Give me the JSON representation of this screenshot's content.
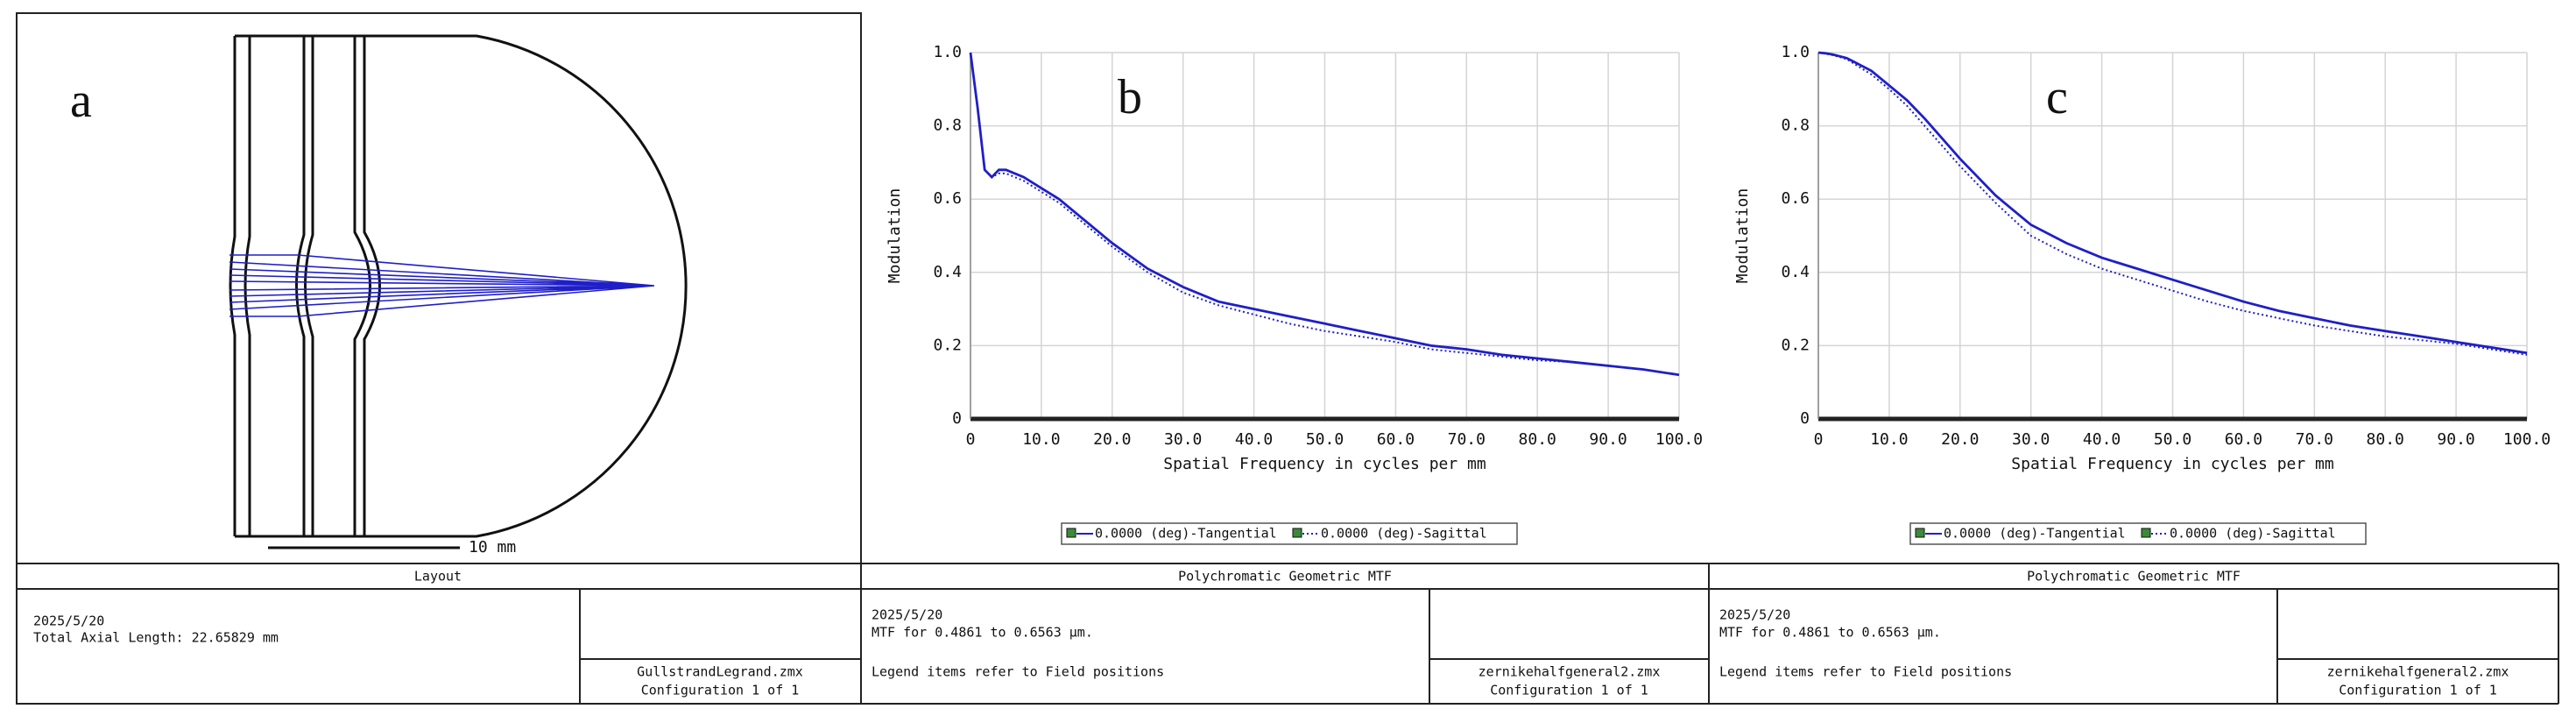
{
  "layout": {
    "label": "a",
    "scale_label": "10 mm",
    "footer": {
      "title": "Layout",
      "date": "2025/5/20",
      "line2": "Total Axial Length:   22.65829 mm",
      "file": "GullstrandLegrand.zmx",
      "config": "Configuration 1 of 1"
    }
  },
  "chart_data": [
    {
      "type": "line",
      "panel_label": "b",
      "x_label": "Spatial Frequency in cycles per mm",
      "y_label": "Modulation",
      "xlim": [
        0,
        100
      ],
      "ylim": [
        0,
        1
      ],
      "xticks": [
        0,
        {
          "value": 10,
          "label": "10.0"
        },
        {
          "value": 20,
          "label": "20.0"
        },
        {
          "value": 30,
          "label": "30.0"
        },
        {
          "value": 40,
          "label": "40.0"
        },
        {
          "value": 50,
          "label": "50.0"
        },
        {
          "value": 60,
          "label": "60.0"
        },
        {
          "value": 70,
          "label": "70.0"
        },
        {
          "value": 80,
          "label": "80.0"
        },
        {
          "value": 90,
          "label": "90.0"
        },
        {
          "value": 100,
          "label": "100.0"
        }
      ],
      "yticks": [
        0,
        0.2,
        0.4,
        0.6,
        0.8,
        {
          "value": 1,
          "label": "1.0"
        }
      ],
      "grid": true,
      "x": [
        0,
        1,
        2,
        3,
        4,
        5,
        7.5,
        10,
        12.5,
        15,
        20,
        25,
        30,
        35,
        40,
        45,
        50,
        55,
        60,
        65,
        70,
        75,
        80,
        85,
        90,
        95,
        100
      ],
      "series": [
        {
          "name": "0.0000 (deg)-Tangential",
          "color": "#1f1fc8",
          "dash": "solid",
          "values": [
            1.0,
            0.85,
            0.68,
            0.66,
            0.68,
            0.68,
            0.66,
            0.63,
            0.6,
            0.56,
            0.48,
            0.41,
            0.36,
            0.32,
            0.3,
            0.28,
            0.26,
            0.24,
            0.22,
            0.2,
            0.19,
            0.175,
            0.165,
            0.155,
            0.145,
            0.135,
            0.12
          ]
        },
        {
          "name": "0.0000 (deg)-Sagittal",
          "color": "#1f1fc8",
          "dash": "dotted",
          "values": [
            1.0,
            0.85,
            0.68,
            0.66,
            0.67,
            0.67,
            0.65,
            0.62,
            0.59,
            0.55,
            0.47,
            0.4,
            0.345,
            0.31,
            0.285,
            0.26,
            0.24,
            0.225,
            0.21,
            0.19,
            0.18,
            0.17,
            0.16,
            0.155,
            0.145,
            0.135,
            0.12
          ]
        }
      ],
      "footer": {
        "title": "Polychromatic Geometric MTF",
        "date": "2025/5/20",
        "line2": "MTF for 0.4861 to 0.6563 µm.",
        "line3": "Legend items refer to Field positions",
        "file": "zernikehalfgeneral2.zmx",
        "config": "Configuration 1 of 1"
      }
    },
    {
      "type": "line",
      "panel_label": "c",
      "x_label": "Spatial Frequency in cycles per mm",
      "y_label": "Modulation",
      "xlim": [
        0,
        100
      ],
      "ylim": [
        0,
        1
      ],
      "xticks": [
        0,
        {
          "value": 10,
          "label": "10.0"
        },
        {
          "value": 20,
          "label": "20.0"
        },
        {
          "value": 30,
          "label": "30.0"
        },
        {
          "value": 40,
          "label": "40.0"
        },
        {
          "value": 50,
          "label": "50.0"
        },
        {
          "value": 60,
          "label": "60.0"
        },
        {
          "value": 70,
          "label": "70.0"
        },
        {
          "value": 80,
          "label": "80.0"
        },
        {
          "value": 90,
          "label": "90.0"
        },
        {
          "value": 100,
          "label": "100.0"
        }
      ],
      "yticks": [
        0,
        0.2,
        0.4,
        0.6,
        0.8,
        {
          "value": 1,
          "label": "1.0"
        }
      ],
      "grid": true,
      "x": [
        0,
        1,
        2,
        3,
        4,
        5,
        7.5,
        10,
        12.5,
        15,
        20,
        25,
        30,
        35,
        40,
        45,
        50,
        55,
        60,
        65,
        70,
        75,
        80,
        85,
        90,
        95,
        100
      ],
      "series": [
        {
          "name": "0.0000 (deg)-Tangential",
          "color": "#1f1fc8",
          "dash": "solid",
          "values": [
            1.0,
            0.998,
            0.995,
            0.99,
            0.985,
            0.975,
            0.95,
            0.91,
            0.87,
            0.82,
            0.71,
            0.61,
            0.53,
            0.48,
            0.44,
            0.41,
            0.38,
            0.35,
            0.32,
            0.295,
            0.275,
            0.255,
            0.24,
            0.225,
            0.21,
            0.195,
            0.18
          ]
        },
        {
          "name": "0.0000 (deg)-Sagittal",
          "color": "#1f1fc8",
          "dash": "dotted",
          "values": [
            1.0,
            0.997,
            0.993,
            0.988,
            0.982,
            0.97,
            0.94,
            0.9,
            0.855,
            0.8,
            0.69,
            0.59,
            0.5,
            0.45,
            0.41,
            0.38,
            0.35,
            0.32,
            0.295,
            0.275,
            0.255,
            0.24,
            0.225,
            0.215,
            0.205,
            0.19,
            0.175
          ]
        }
      ],
      "footer": {
        "title": "Polychromatic Geometric MTF",
        "date": "2025/5/20",
        "line2": "MTF for 0.4861 to 0.6563 µm.",
        "line3": "Legend items refer to Field positions",
        "file": "zernikehalfgeneral2.zmx",
        "config": "Configuration 1 of 1"
      }
    }
  ]
}
